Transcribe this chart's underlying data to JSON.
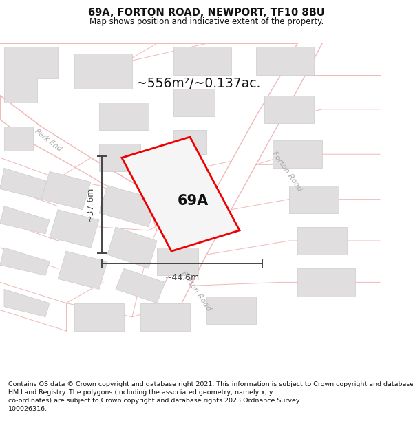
{
  "title": "69A, FORTON ROAD, NEWPORT, TF10 8BU",
  "subtitle": "Map shows position and indicative extent of the property.",
  "footer": "Contains OS data © Crown copyright and database right 2021. This information is subject to Crown copyright and database rights 2023 and is reproduced with the permission of\nHM Land Registry. The polygons (including the associated geometry, namely x, y\nco-ordinates) are subject to Crown copyright and database rights 2023 Ordnance Survey\n100026316.",
  "area_label": "~556m²/~0.137ac.",
  "plot_label": "69A",
  "width_label": "~44.6m",
  "height_label": "~37.6m",
  "map_bg_color": "#fafafa",
  "plot_fill": "#f5f5f5",
  "plot_edge_color": "#ee0000",
  "building_fill": "#e0dede",
  "building_edge": "#cccccc",
  "road_line_color": "#f0b8b8",
  "title_fontsize": 10.5,
  "subtitle_fontsize": 8.5,
  "footer_fontsize": 6.8,
  "road_label_color": "#aaaaaa",
  "road_label_size": 8.0,
  "dim_color": "#444444",
  "area_fontsize": 13.5,
  "plot_label_fontsize": 15,
  "dim_fontsize": 9
}
